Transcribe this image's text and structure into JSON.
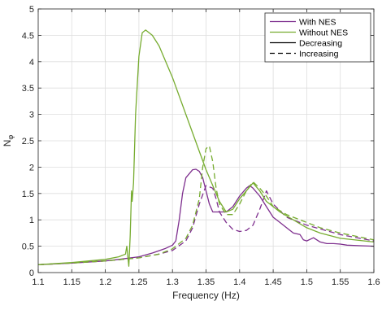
{
  "chart_data": {
    "type": "line",
    "xlabel": "Frequency (Hz)",
    "ylabel_main": "N",
    "ylabel_sub": "φ",
    "xlim": [
      1.1,
      1.6
    ],
    "ylim": [
      0,
      5
    ],
    "grid": true,
    "legend_placement": "top-right",
    "x_ticks": [
      "1.1",
      "1.15",
      "1.2",
      "1.25",
      "1.3",
      "1.35",
      "1.4",
      "1.45",
      "1.5",
      "1.55",
      "1.6"
    ],
    "y_ticks": [
      "0",
      "0.5",
      "1",
      "1.5",
      "2",
      "2.5",
      "3",
      "3.5",
      "4",
      "4.5",
      "5"
    ],
    "colors": {
      "with_nes": "#7e2f8e",
      "without_nes": "#77ac30",
      "legend_key": "#000000"
    },
    "legend": [
      {
        "label": "With NES",
        "color": "#7e2f8e",
        "dash": "solid"
      },
      {
        "label": "Without NES",
        "color": "#77ac30",
        "dash": "solid"
      },
      {
        "label": "Decreasing",
        "color": "#000000",
        "dash": "solid"
      },
      {
        "label": "Increasing",
        "color": "#000000",
        "dash": "dashed"
      }
    ],
    "series": [
      {
        "name": "With NES",
        "sweep": "Decreasing",
        "color": "#7e2f8e",
        "dash": "solid",
        "x": [
          1.1,
          1.15,
          1.2,
          1.22,
          1.25,
          1.27,
          1.29,
          1.3,
          1.305,
          1.31,
          1.315,
          1.32,
          1.33,
          1.335,
          1.34,
          1.345,
          1.35,
          1.355,
          1.36,
          1.37,
          1.38,
          1.39,
          1.4,
          1.41,
          1.415,
          1.42,
          1.43,
          1.44,
          1.45,
          1.46,
          1.47,
          1.48,
          1.49,
          1.495,
          1.5,
          1.51,
          1.52,
          1.53,
          1.54,
          1.55,
          1.56,
          1.58,
          1.6
        ],
        "y": [
          0.15,
          0.18,
          0.22,
          0.25,
          0.3,
          0.37,
          0.46,
          0.52,
          0.6,
          1.0,
          1.5,
          1.8,
          1.95,
          1.96,
          1.92,
          1.8,
          1.55,
          1.3,
          1.15,
          1.15,
          1.15,
          1.25,
          1.45,
          1.6,
          1.65,
          1.6,
          1.45,
          1.25,
          1.05,
          0.95,
          0.85,
          0.75,
          0.72,
          0.62,
          0.6,
          0.66,
          0.58,
          0.55,
          0.55,
          0.54,
          0.52,
          0.51,
          0.5
        ]
      },
      {
        "name": "With NES",
        "sweep": "Increasing",
        "color": "#7e2f8e",
        "dash": "dashed",
        "x": [
          1.1,
          1.15,
          1.2,
          1.25,
          1.28,
          1.3,
          1.32,
          1.33,
          1.34,
          1.35,
          1.36,
          1.365,
          1.37,
          1.38,
          1.39,
          1.4,
          1.41,
          1.42,
          1.43,
          1.44,
          1.45,
          1.47,
          1.5,
          1.55,
          1.6
        ],
        "y": [
          0.15,
          0.18,
          0.22,
          0.28,
          0.35,
          0.42,
          0.6,
          0.85,
          1.3,
          1.65,
          1.6,
          1.4,
          1.15,
          0.95,
          0.82,
          0.78,
          0.8,
          0.9,
          1.2,
          1.55,
          1.3,
          1.05,
          0.9,
          0.72,
          0.6
        ]
      },
      {
        "name": "Without NES",
        "sweep": "Decreasing",
        "color": "#77ac30",
        "dash": "solid",
        "x": [
          1.1,
          1.15,
          1.2,
          1.22,
          1.23,
          1.232,
          1.235,
          1.237,
          1.239,
          1.24,
          1.242,
          1.245,
          1.25,
          1.255,
          1.26,
          1.27,
          1.28,
          1.29,
          1.3,
          1.32,
          1.34,
          1.35,
          1.36,
          1.37,
          1.38,
          1.39,
          1.4,
          1.41,
          1.42,
          1.43,
          1.44,
          1.45,
          1.46,
          1.48,
          1.5,
          1.52,
          1.55,
          1.6
        ],
        "y": [
          0.15,
          0.19,
          0.25,
          0.3,
          0.35,
          0.5,
          0.12,
          0.7,
          1.55,
          1.35,
          1.7,
          3.0,
          4.1,
          4.55,
          4.6,
          4.5,
          4.3,
          4.0,
          3.7,
          3.0,
          2.3,
          1.95,
          1.65,
          1.35,
          1.15,
          1.2,
          1.4,
          1.55,
          1.7,
          1.55,
          1.35,
          1.25,
          1.15,
          1.0,
          0.85,
          0.75,
          0.65,
          0.58
        ]
      },
      {
        "name": "Without NES",
        "sweep": "Increasing",
        "color": "#77ac30",
        "dash": "dashed",
        "x": [
          1.1,
          1.15,
          1.2,
          1.25,
          1.28,
          1.3,
          1.32,
          1.33,
          1.34,
          1.345,
          1.35,
          1.355,
          1.36,
          1.365,
          1.37,
          1.38,
          1.39,
          1.4,
          1.41,
          1.42,
          1.43,
          1.44,
          1.45,
          1.47,
          1.49,
          1.5,
          1.52,
          1.55,
          1.6
        ],
        "y": [
          0.15,
          0.18,
          0.22,
          0.28,
          0.35,
          0.45,
          0.65,
          0.9,
          1.4,
          2.0,
          2.35,
          2.4,
          2.1,
          1.6,
          1.3,
          1.1,
          1.1,
          1.3,
          1.55,
          1.72,
          1.6,
          1.45,
          1.25,
          1.1,
          1.0,
          0.95,
          0.85,
          0.75,
          0.62
        ]
      }
    ]
  }
}
